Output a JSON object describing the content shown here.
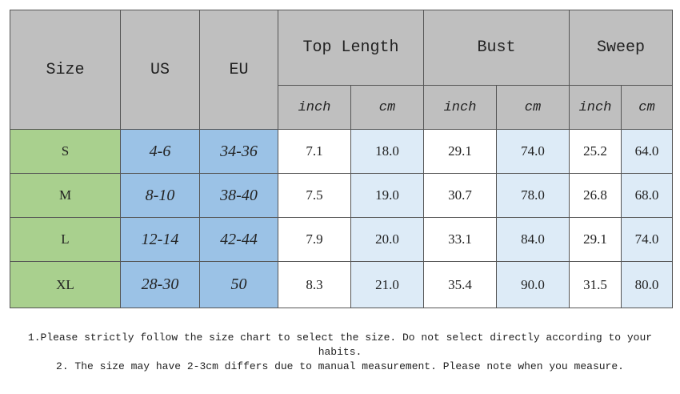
{
  "header": {
    "columns": [
      "Size",
      "US",
      "EU",
      "Top Length",
      "Bust",
      "Sweep"
    ],
    "units": [
      "inch",
      "cm",
      "inch",
      "cm",
      "inch",
      "cm"
    ]
  },
  "table": {
    "rows": [
      [
        "S",
        "4-6",
        "34-36",
        "7.1",
        "18.0",
        "29.1",
        "74.0",
        "25.2",
        "64.0"
      ],
      [
        "M",
        "8-10",
        "38-40",
        "7.5",
        "19.0",
        "30.7",
        "78.0",
        "26.8",
        "68.0"
      ],
      [
        "L",
        "12-14",
        "42-44",
        "7.9",
        "20.0",
        "33.1",
        "84.0",
        "29.1",
        "74.0"
      ],
      [
        "XL",
        "28-30",
        "50",
        "8.3",
        "21.0",
        "35.4",
        "90.0",
        "31.5",
        "80.0"
      ]
    ]
  },
  "notes": [
    "1.Please strictly follow the size chart to select the size. Do not select directly according to your habits.",
    "2. The size may have 2-3cm differs due to manual measurement. Please note when you measure."
  ]
}
